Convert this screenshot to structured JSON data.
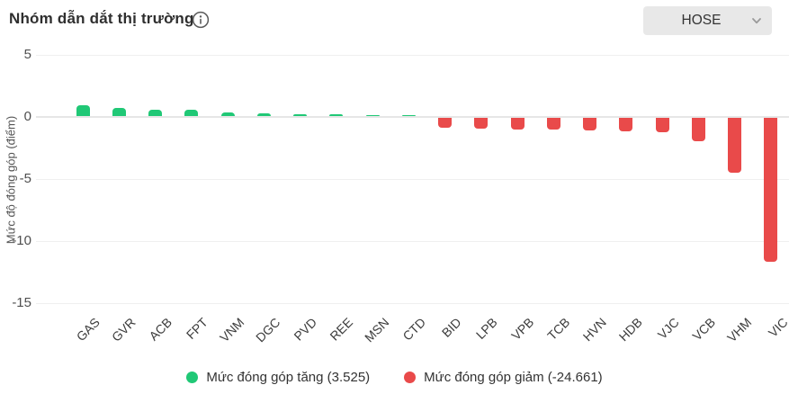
{
  "header": {
    "title": "Nhóm dẫn dắt thị trường",
    "exchange": "HOSE"
  },
  "chart_data": {
    "type": "bar",
    "title": "Nhóm dẫn dắt thị trường",
    "ylabel": "Mức độ đóng góp (điểm)",
    "xlabel": "",
    "ylim": [
      -15,
      5
    ],
    "yticks": [
      5,
      0,
      -5,
      -10,
      -15
    ],
    "grid": true,
    "legend_position": "bottom",
    "categories": [
      "GAS",
      "GVR",
      "ACB",
      "FPT",
      "VNM",
      "DGC",
      "PVD",
      "REE",
      "MSN",
      "CTD",
      "BID",
      "LPB",
      "VPB",
      "TCB",
      "HVN",
      "HDB",
      "VJC",
      "VCB",
      "VHM",
      "VIC"
    ],
    "values": [
      0.9,
      0.65,
      0.52,
      0.48,
      0.27,
      0.25,
      0.15,
      0.13,
      0.1,
      0.08,
      -0.8,
      -0.85,
      -0.92,
      -0.95,
      -1.0,
      -1.12,
      -1.15,
      -1.85,
      -4.45,
      -11.57
    ],
    "colors": {
      "positive": "#20c876",
      "negative": "#e94a4a"
    },
    "totals": {
      "increase": "3.525",
      "decrease": "-24.661"
    }
  },
  "legend": {
    "items": [
      {
        "label": "Mức đóng góp tăng (3.525)",
        "color": "#20c876"
      },
      {
        "label": "Mức đóng góp giảm (-24.661)",
        "color": "#e94a4a"
      }
    ]
  }
}
